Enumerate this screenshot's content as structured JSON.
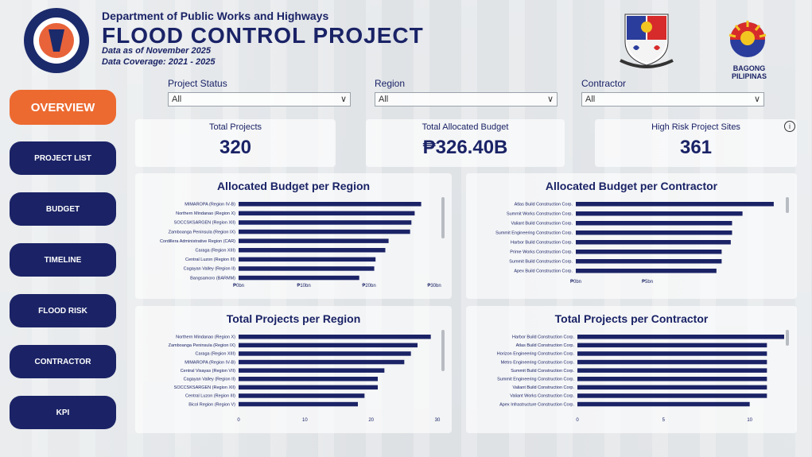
{
  "header": {
    "department": "Department of Public Works and Highways",
    "title": "FLOOD CONTROL PROJECT",
    "data_as_of": "Data as of November 2025",
    "coverage": "Data Coverage: 2021 - 2025",
    "bagong": "BAGONG PILIPINAS"
  },
  "filters": [
    {
      "label": "Project Status",
      "value": "All"
    },
    {
      "label": "Region",
      "value": "All"
    },
    {
      "label": "Contractor",
      "value": "All"
    }
  ],
  "nav": {
    "overview": "OVERVIEW",
    "items": [
      "PROJECT LIST",
      "BUDGET",
      "TIMELINE",
      "FLOOD RISK",
      "CONTRACTOR",
      "KPI"
    ]
  },
  "kpis": [
    {
      "label": "Total Projects",
      "value": "320"
    },
    {
      "label": "Total Allocated Budget",
      "value": "₱326.40B"
    },
    {
      "label": "High Risk Project Sites",
      "value": "361"
    }
  ],
  "colors": {
    "accent": "#ec6a30",
    "navy": "#1b2366",
    "bar": "#1b2366"
  },
  "chart_data": [
    {
      "type": "bar",
      "title": "Allocated Budget per Region",
      "categories": [
        "MIMAROPA (Region IV-B)",
        "Northern Mindanao (Region X)",
        "SOCCSKSARGEN (Region XII)",
        "Zamboanga Peninsula (Region IX)",
        "Cordillera Administrative Region (CAR)",
        "Caraga (Region XIII)",
        "Central Luzon (Region III)",
        "Cagayan Valley (Region II)",
        "Bangsamoro (BARMM)"
      ],
      "values": [
        28,
        27,
        26.5,
        26.3,
        23,
        22.5,
        21,
        20.8,
        18.5
      ],
      "ticks": [
        "₱0bn",
        "₱10bn",
        "₱20bn",
        "₱30bn"
      ],
      "xlim": [
        0,
        30
      ]
    },
    {
      "type": "bar",
      "title": "Allocated Budget per Contractor",
      "categories": [
        "Atlas Build Construction Corp.",
        "Summit Works Construction Corp.",
        "Valiant Build Construction Corp.",
        "Summit Engineering Construction Corp.",
        "Harbor Build Construction Corp.",
        "Prime Works Construction Corp.",
        "Summit Build Construction Corp.",
        "Apex Build Construction Corp."
      ],
      "values": [
        7.6,
        6.4,
        6.0,
        6.0,
        5.95,
        5.6,
        5.6,
        5.4
      ],
      "ticks": [
        "₱0bn",
        "₱5bn"
      ],
      "xlim": [
        0,
        8
      ]
    },
    {
      "type": "bar",
      "title": "Total Projects per Region",
      "categories": [
        "Northern Mindanao (Region X)",
        "Zamboanga Peninsula (Region IX)",
        "Caraga (Region XIII)",
        "MIMAROPA (Region IV-B)",
        "Central Visayas (Region VII)",
        "Cagayan Valley (Region II)",
        "SOCCSKSARGEN (Region XII)",
        "Central Luzon (Region III)",
        "Bicol Region (Region V)"
      ],
      "values": [
        29,
        27,
        26,
        25,
        22,
        21,
        21,
        19,
        18
      ],
      "ticks": [
        "0",
        "10",
        "20",
        "30"
      ],
      "xlim": [
        0,
        30
      ]
    },
    {
      "type": "bar",
      "title": "Total Projects per Contractor",
      "categories": [
        "Harbor Build Construction Corp.",
        "Atlas Build Construction Corp.",
        "Horizon Engineering Construction Corp.",
        "Metro Engineering Construction Corp.",
        "Summit Build Construction Corp.",
        "Summit Engineering Construction Corp.",
        "Valiant Build Construction Corp.",
        "Valiant Works Construction Corp.",
        "Apex Infrastructure Construction Corp."
      ],
      "values": [
        12,
        11,
        11,
        11,
        11,
        11,
        11,
        11,
        10
      ],
      "ticks": [
        "0",
        "5",
        "10"
      ],
      "xlim": [
        0,
        12
      ]
    }
  ]
}
